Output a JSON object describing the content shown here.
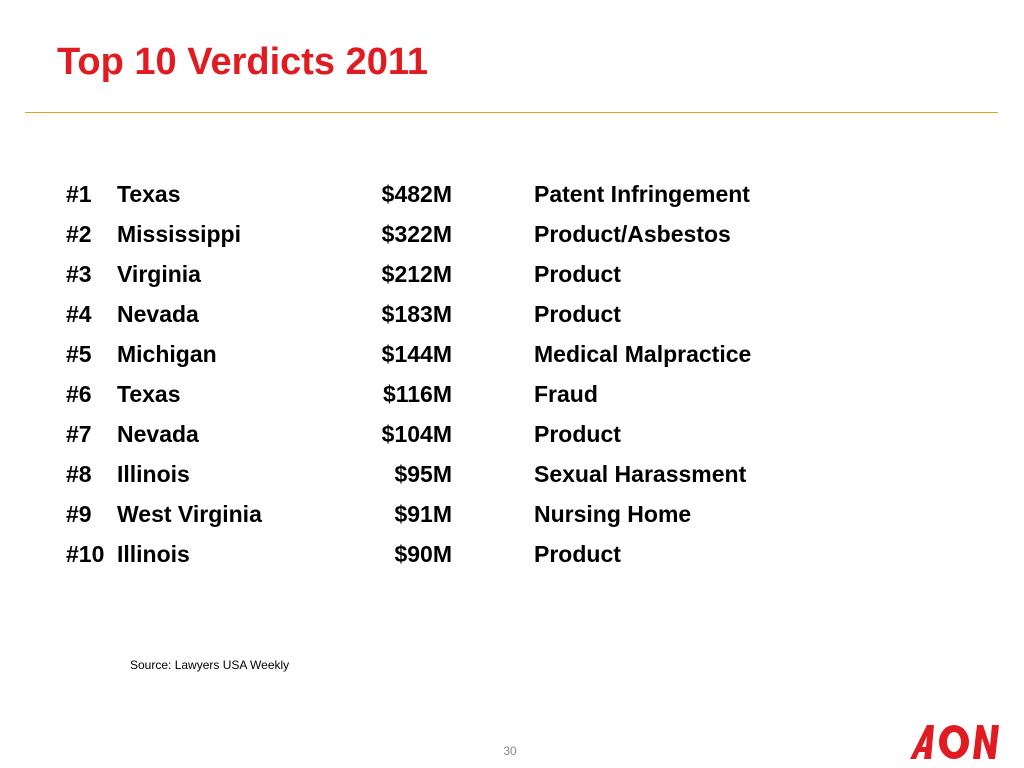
{
  "slide": {
    "title": "Top 10 Verdicts 2011",
    "page_number": "30",
    "source": "Source: Lawyers USA Weekly",
    "logo_text": "AON"
  },
  "colors": {
    "title": "#e11b22",
    "rule": "#e3a21a",
    "logo": "#e11b22"
  },
  "verdicts": [
    {
      "rank": "#1",
      "state": "Texas",
      "amount": "$482M",
      "type": "Patent Infringement"
    },
    {
      "rank": "#2",
      "state": "Mississippi",
      "amount": "$322M",
      "type": "Product/Asbestos"
    },
    {
      "rank": "#3",
      "state": "Virginia",
      "amount": "$212M",
      "type": "Product"
    },
    {
      "rank": "#4",
      "state": "Nevada",
      "amount": "$183M",
      "type": "Product"
    },
    {
      "rank": "#5",
      "state": "Michigan",
      "amount": "$144M",
      "type": "Medical Malpractice"
    },
    {
      "rank": "#6",
      "state": "Texas",
      "amount": "$116M",
      "type": "Fraud"
    },
    {
      "rank": "#7",
      "state": "Nevada",
      "amount": "$104M",
      "type": "Product"
    },
    {
      "rank": "#8",
      "state": "Illinois",
      "amount": "$95M",
      "type": "Sexual Harassment"
    },
    {
      "rank": "#9",
      "state": "West Virginia",
      "amount": "$91M",
      "type": "Nursing Home"
    },
    {
      "rank": "#10",
      "state": "Illinois",
      "amount": "$90M",
      "type": "Product"
    }
  ]
}
